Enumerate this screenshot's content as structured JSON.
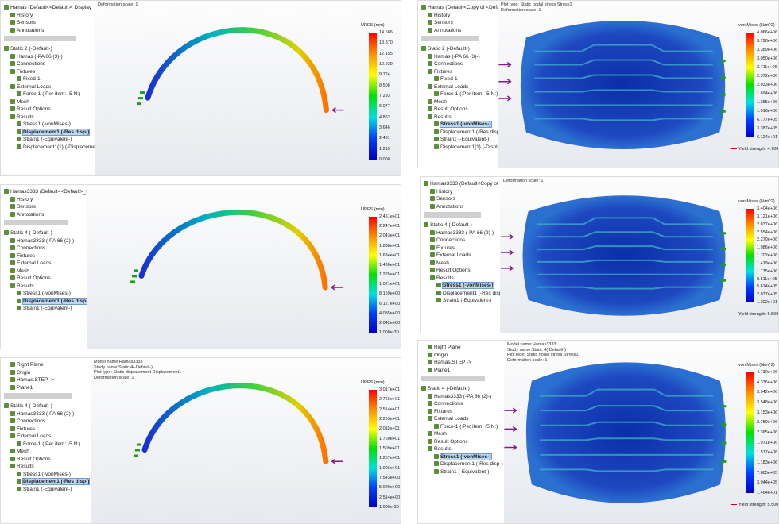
{
  "panels": [
    {
      "header": [
        "Deformation scale: 1"
      ],
      "legend_title": "URES (mm)",
      "legend": [
        "14.586",
        "13.370",
        "12.155",
        "10.939",
        "9.724",
        "8.508",
        "7.293",
        "6.077",
        "4.862",
        "3.646",
        "2.431",
        "1.215",
        "0.000"
      ],
      "tree": [
        "Hamas (Default<<Default>_Display",
        "History",
        "Sensors",
        "Annotations",
        "Static 2 (-Default-)",
        "Hamas (-PA 66 (3)-)",
        "Connections",
        "Fixtures",
        "Fixed-1",
        "External Loads",
        "Force-1 (:Per item: -5 N:)",
        "Mesh",
        "Result Options",
        "Results",
        "Stress1 (-vonMises-)",
        "Displacement1 (-Res disp-)",
        "Strain1 (-Equivalent-)",
        "Displacement1{1} (-Displacement-)"
      ]
    },
    {
      "header": [
        "Plot type: Static nodal stress Stress1",
        "Deformation scale: 1"
      ],
      "legend_title": "von Mises (N/m^2)",
      "legend": [
        "4.066e+06",
        "3.728e+06",
        "3.389e+06",
        "3.050e+06",
        "2.711e+06",
        "2.372e+06",
        "2.033e+06",
        "1.694e+06",
        "1.355e+06",
        "1.016e+06",
        "6.777e+05",
        "3.387e+05",
        "6.124e+01"
      ],
      "yield": "Yield strength: 4.700e+07",
      "tree": [
        "Hamas (Default<Copy of <Default>",
        "History",
        "Sensors",
        "Annotations",
        "Static 2 (-Default-)",
        "Hamas (-PA 66 (3)-)",
        "Connections",
        "Fixtures",
        "Fixed-1",
        "External Loads",
        "Force-1 (:Per item: -5 N:)",
        "Mesh",
        "Result Options",
        "Results",
        "Stress1 (-vonMises-)",
        "Displacement1 (-Res disp-)",
        "Strain1 (-Equivalent-)",
        "Displacement1{1} (-Displacement-)"
      ]
    },
    {
      "header": [],
      "legend_title": "URES (mm)",
      "legend": [
        "2.451e+01",
        "2.247e+01",
        "2.043e+01",
        "1.838e+01",
        "1.634e+01",
        "1.430e+01",
        "1.225e+01",
        "1.021e+01",
        "8.169e+00",
        "6.127e+00",
        "4.085e+00",
        "2.042e+00",
        "1.000e-30"
      ],
      "tree": [
        "Hamas3333 (Default<<Default>_Dis",
        "History",
        "Sensors",
        "Annotations",
        "Static 4 (-Default-)",
        "Hamas3333 (-PA 66 (2)-)",
        "Connections",
        "Fixtures",
        "External Loads",
        "Mesh",
        "Result Options",
        "Results",
        "Stress1 (-vonMises-)",
        "Displacement1 (-Res disp-)",
        "Strain1 (-Equivalent-)"
      ]
    },
    {
      "header": [
        "Deformation scale: 1"
      ],
      "legend_title": "von Mises (N/m^2)",
      "legend": [
        "3.404e+06",
        "3.121e+06",
        "2.837e+06",
        "2.554e+06",
        "2.270e+06",
        "1.986e+06",
        "1.702e+06",
        "1.419e+06",
        "1.135e+06",
        "8.511e+05",
        "5.674e+05",
        "2.837e+05",
        "1.202e+01"
      ],
      "yield": "Yield strength: 5.500e+07",
      "tree": [
        "Hamas3333 (Default<Copy of <Def",
        "History",
        "Sensors",
        "Annotations",
        "Static 4 (-Default-)",
        "Hamas3333 (-PA 66 (2)-)",
        "Connections",
        "Fixtures",
        "External Loads",
        "Mesh",
        "Result Options",
        "Results",
        "Stress1 (-vonMises-)",
        "Displacement1 (-Res disp-)",
        "Strain1 (-Equivalent-)"
      ]
    },
    {
      "header": [
        "Model name:Hamas3333",
        "Study name:Static 4(-Default-)",
        "Plot type: Static displacement Displacement1",
        "Deformation scale: 1"
      ],
      "legend_title": "URES (mm)",
      "legend": [
        "3.017e+01",
        "2.766e+01",
        "2.514e+01",
        "2.263e+01",
        "2.011e+01",
        "1.760e+01",
        "1.509e+01",
        "1.257e+01",
        "1.006e+01",
        "7.543e+00",
        "5.029e+00",
        "2.514e+00",
        "1.000e-30"
      ],
      "tree": [
        "Right Plane",
        "Origin",
        "Hamas.STEP ->",
        "Plane1",
        "Static 4 (-Default-)",
        "Hamas3333 (-PA 66 (2)-)",
        "Connections",
        "Fixtures",
        "External Loads",
        "Force-1 (:Per item: -5 N:)",
        "Mesh",
        "Result Options",
        "Results",
        "Stress1 (-vonMises-)",
        "Displacement1 (-Res disp-)",
        "Strain1 (-Equivalent-)"
      ]
    },
    {
      "header": [
        "Model name:Hamas3333",
        "Study name:Static 4(-Default-)",
        "Plot type: Static nodal stress Stress1",
        "Deformation scale: 1"
      ],
      "legend_title": "von Mises (N/m^2)",
      "legend": [
        "4.730e+06",
        "4.336e+06",
        "3.942e+06",
        "3.548e+06",
        "3.153e+06",
        "2.759e+06",
        "2.365e+06",
        "1.971e+06",
        "1.577e+06",
        "1.183e+06",
        "7.885e+05",
        "3.944e+05",
        "1.464e+01"
      ],
      "yield": "Yield strength: 5.500e+07",
      "tree": [
        "Right Plane",
        "Origin",
        "Hamas.STEP ->",
        "Plane1",
        "Static 4 (-Default-)",
        "Hamas3333 (-PA 66 (2)-)",
        "Connections",
        "Fixtures",
        "External Loads",
        "Force-1 (:Per item: -5 N:)",
        "Mesh",
        "Result Options",
        "Results",
        "Stress1 (-vonMises-)",
        "Displacement1 (-Res disp-)",
        "Strain1 (-Equivalent-)"
      ]
    }
  ]
}
